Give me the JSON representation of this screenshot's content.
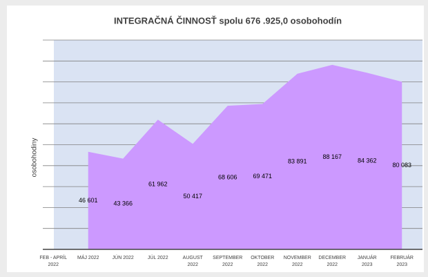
{
  "chart_data": {
    "type": "area",
    "title": "INTEGRAČNÁ ČINNOSŤ spolu 676 .925,0 osobohodín",
    "y_label": "osobohodiny",
    "categories": [
      "FEB - APRÍL 2022",
      "MÁJ 2022",
      "JÚN 2022",
      "JÚL 2022",
      "AUGUST 2022",
      "SEPTEMBER 2022",
      "OKTOBER 2022",
      "NOVEMBER 2022",
      "DECEMBER 2022",
      "JANUÁR 2023",
      "FEBRUÁR 2023"
    ],
    "values": [
      null,
      46601,
      43366,
      61962,
      50417,
      68606,
      69471,
      83891,
      88167,
      84362,
      80083
    ],
    "value_labels": [
      null,
      "46 601",
      "43 366",
      "61 962",
      "50 417",
      "68 606",
      "69 471",
      "83 891",
      "88 167",
      "84 362",
      "80 083"
    ],
    "color": "#cc99ff",
    "ylim": [
      0,
      100000
    ],
    "yticks": [
      0,
      10000,
      20000,
      30000,
      40000,
      50000,
      60000,
      70000,
      80000,
      90000,
      100000
    ],
    "grid": true
  }
}
